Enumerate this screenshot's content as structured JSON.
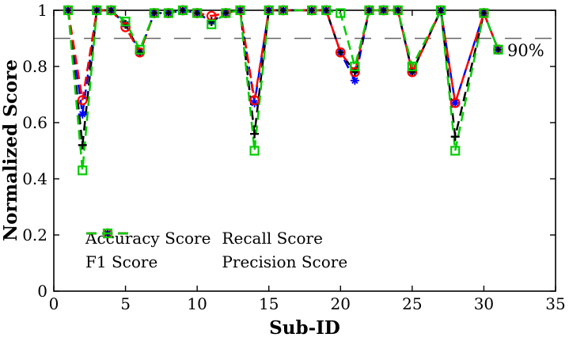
{
  "chart_data": {
    "type": "line",
    "title": "",
    "xlabel": "Sub-ID",
    "ylabel": "Normalized Score",
    "xlim": [
      0,
      35
    ],
    "ylim": [
      0,
      1
    ],
    "xticks": [
      0,
      5,
      10,
      15,
      20,
      25,
      30,
      35
    ],
    "yticks": [
      0,
      0.2,
      0.4,
      0.6,
      0.8,
      1
    ],
    "grid": false,
    "legend_position": "lower-center-inside",
    "threshold": {
      "value": 0.9,
      "label": "90%",
      "color": "#666666",
      "style": "dashed"
    },
    "x": [
      1,
      2,
      3,
      4,
      5,
      6,
      7,
      8,
      9,
      10,
      11,
      12,
      13,
      14,
      15,
      16,
      18,
      19,
      20,
      21,
      22,
      23,
      24,
      25,
      27,
      28,
      30,
      31
    ],
    "series": [
      {
        "name": "Accuracy Score",
        "color": "#0000ff",
        "marker": "asterisk",
        "linestyle": "dashed",
        "values": [
          1,
          0.63,
          1,
          1,
          0.95,
          0.85,
          0.99,
          0.99,
          1,
          0.99,
          0.96,
          0.99,
          1,
          0.67,
          1,
          1,
          1,
          1,
          0.85,
          0.75,
          1,
          1,
          1,
          0.78,
          1,
          0.67,
          0.99,
          0.86
        ]
      },
      {
        "name": "F1 Score",
        "color": "#000000",
        "marker": "plus",
        "linestyle": "dashed",
        "values": [
          1,
          0.52,
          1,
          1,
          0.95,
          0.85,
          0.99,
          0.99,
          1,
          0.99,
          0.96,
          0.99,
          1,
          0.56,
          1,
          1,
          1,
          1,
          0.85,
          0.78,
          1,
          1,
          1,
          0.78,
          1,
          0.55,
          0.99,
          0.86
        ]
      },
      {
        "name": "Recall Score",
        "color": "#ff0000",
        "marker": "circle",
        "linestyle": "dashed",
        "values": [
          1,
          0.68,
          1,
          1,
          0.94,
          0.85,
          0.99,
          0.99,
          1,
          0.99,
          0.98,
          0.99,
          1,
          0.68,
          1,
          1,
          1,
          1,
          0.85,
          0.78,
          1,
          1,
          1,
          0.78,
          1,
          0.67,
          0.99,
          0.86
        ]
      },
      {
        "name": "Precision Score",
        "color": "#00cc00",
        "marker": "square",
        "linestyle": "dashed",
        "values": [
          1,
          0.43,
          1,
          1,
          0.96,
          0.86,
          0.99,
          0.99,
          1,
          0.99,
          0.95,
          0.99,
          1,
          0.5,
          1,
          1,
          1,
          1,
          0.99,
          0.8,
          1,
          1,
          1,
          0.8,
          1,
          0.5,
          0.99,
          0.86
        ]
      }
    ]
  }
}
